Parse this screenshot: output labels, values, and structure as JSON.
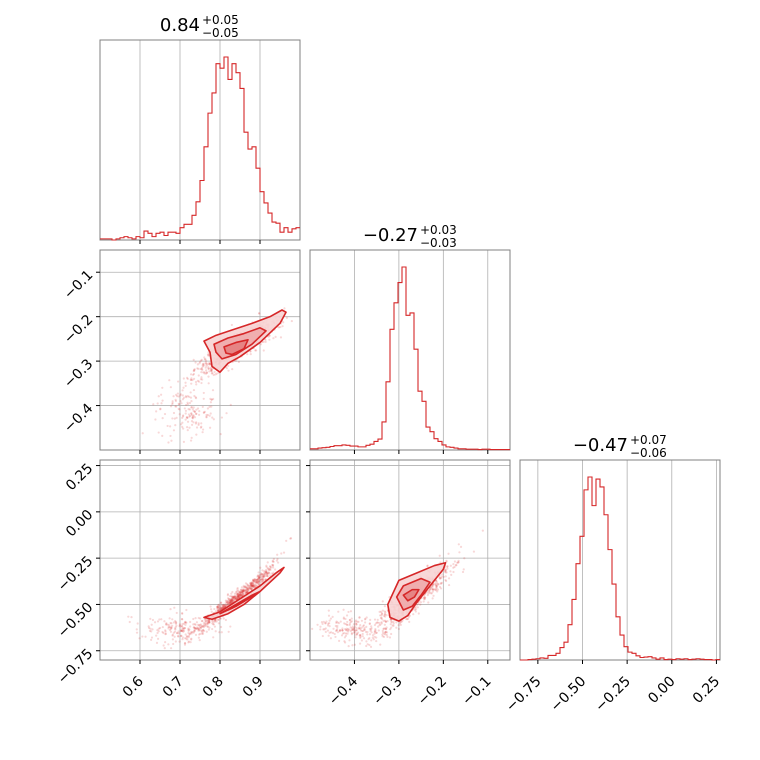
{
  "chart_data": [
    {
      "type": "histogram",
      "panel": "hist-x",
      "title": {
        "value": "0.84",
        "plus": "+0.05",
        "minus": "−0.05"
      },
      "xlim": [
        0.5,
        1.0
      ],
      "bins_start": 0.5,
      "bin_width": 0.01,
      "counts": [
        1,
        1,
        1,
        0,
        1,
        2,
        3,
        2,
        1,
        3,
        2,
        8,
        6,
        3,
        6,
        7,
        4,
        7,
        7,
        6,
        11,
        14,
        14,
        22,
        34,
        53,
        83,
        113,
        131,
        157,
        153,
        163,
        143,
        157,
        149,
        135,
        96,
        81,
        83,
        64,
        43,
        33,
        24,
        16,
        15,
        7,
        11,
        7,
        10,
        11
      ],
      "color": "#d62728"
    },
    {
      "type": "scatter-contour",
      "panel": "xy",
      "xlim": [
        0.5,
        1.0
      ],
      "ylim": [
        -0.5,
        -0.05
      ],
      "yticks": [
        -0.1,
        -0.2,
        -0.3,
        -0.4
      ],
      "ytick_labels": [
        "−0.1",
        "−0.2",
        "−0.3",
        "−0.4"
      ],
      "contours": [
        [
          [
            0.76,
            -0.255
          ],
          [
            0.79,
            -0.242
          ],
          [
            0.83,
            -0.23
          ],
          [
            0.88,
            -0.215
          ],
          [
            0.925,
            -0.2
          ],
          [
            0.955,
            -0.185
          ],
          [
            0.965,
            -0.19
          ],
          [
            0.95,
            -0.215
          ],
          [
            0.9,
            -0.258
          ],
          [
            0.85,
            -0.29
          ],
          [
            0.82,
            -0.305
          ],
          [
            0.8,
            -0.325
          ],
          [
            0.78,
            -0.312
          ],
          [
            0.775,
            -0.28
          ]
        ],
        [
          [
            0.785,
            -0.262
          ],
          [
            0.82,
            -0.248
          ],
          [
            0.86,
            -0.238
          ],
          [
            0.9,
            -0.225
          ],
          [
            0.915,
            -0.232
          ],
          [
            0.88,
            -0.262
          ],
          [
            0.84,
            -0.285
          ],
          [
            0.805,
            -0.295
          ],
          [
            0.79,
            -0.28
          ]
        ],
        [
          [
            0.81,
            -0.268
          ],
          [
            0.84,
            -0.258
          ],
          [
            0.87,
            -0.252
          ],
          [
            0.86,
            -0.272
          ],
          [
            0.83,
            -0.285
          ],
          [
            0.815,
            -0.282
          ]
        ]
      ],
      "color": "#d62728"
    },
    {
      "type": "histogram",
      "panel": "hist-y",
      "title": {
        "value": "−0.27",
        "plus": "+0.03",
        "minus": "−0.03"
      },
      "xlim": [
        -0.5,
        -0.05
      ],
      "xticks": [
        -0.4,
        -0.3,
        -0.2,
        -0.1
      ],
      "bins_start": -0.5,
      "bin_width": 0.009,
      "counts": [
        3,
        3,
        5,
        6,
        7,
        9,
        11,
        11,
        13,
        12,
        10,
        10,
        8,
        8,
        12,
        15,
        22,
        28,
        72,
        175,
        310,
        378,
        430,
        470,
        346,
        352,
        259,
        151,
        125,
        59,
        47,
        29,
        22,
        13,
        8,
        7,
        5,
        3,
        3,
        2,
        2,
        2,
        1,
        2,
        2,
        1,
        1,
        1,
        1,
        1
      ],
      "color": "#d62728"
    },
    {
      "type": "scatter-contour",
      "panel": "xz",
      "xlim": [
        0.5,
        1.0
      ],
      "ylim": [
        -0.8,
        0.28
      ],
      "yticks": [
        0.25,
        0.0,
        -0.25,
        -0.5,
        -0.75
      ],
      "ytick_labels": [
        "0.25",
        "0.00",
        "−0.25",
        "−0.50",
        "−0.75"
      ],
      "xticks": [
        0.6,
        0.7,
        0.8,
        0.9
      ],
      "xtick_labels": [
        "0.6",
        "0.7",
        "0.8",
        "0.9"
      ],
      "contours": [
        [
          [
            0.76,
            -0.57
          ],
          [
            0.8,
            -0.54
          ],
          [
            0.85,
            -0.47
          ],
          [
            0.9,
            -0.4
          ],
          [
            0.94,
            -0.33
          ],
          [
            0.96,
            -0.3
          ],
          [
            0.95,
            -0.33
          ],
          [
            0.9,
            -0.43
          ],
          [
            0.86,
            -0.5
          ],
          [
            0.82,
            -0.55
          ],
          [
            0.78,
            -0.58
          ]
        ],
        [
          [
            0.8,
            -0.55
          ],
          [
            0.84,
            -0.5
          ],
          [
            0.88,
            -0.45
          ],
          [
            0.9,
            -0.43
          ],
          [
            0.87,
            -0.47
          ],
          [
            0.83,
            -0.52
          ]
        ],
        [
          [
            0.82,
            -0.53
          ],
          [
            0.85,
            -0.49
          ],
          [
            0.87,
            -0.47
          ],
          [
            0.84,
            -0.51
          ]
        ]
      ],
      "color": "#d62728"
    },
    {
      "type": "scatter-contour",
      "panel": "yz",
      "xlim": [
        -0.5,
        -0.05
      ],
      "ylim": [
        -0.8,
        0.28
      ],
      "xticks": [
        -0.4,
        -0.3,
        -0.2,
        -0.1
      ],
      "xtick_labels": [
        "−0.4",
        "−0.3",
        "−0.2",
        "−0.1"
      ],
      "contours": [
        [
          [
            -0.325,
            -0.5
          ],
          [
            -0.3,
            -0.37
          ],
          [
            -0.26,
            -0.33
          ],
          [
            -0.22,
            -0.29
          ],
          [
            -0.195,
            -0.275
          ],
          [
            -0.2,
            -0.31
          ],
          [
            -0.23,
            -0.4
          ],
          [
            -0.26,
            -0.49
          ],
          [
            -0.28,
            -0.56
          ],
          [
            -0.3,
            -0.59
          ],
          [
            -0.32,
            -0.57
          ]
        ],
        [
          [
            -0.305,
            -0.46
          ],
          [
            -0.29,
            -0.4
          ],
          [
            -0.25,
            -0.36
          ],
          [
            -0.23,
            -0.38
          ],
          [
            -0.25,
            -0.45
          ],
          [
            -0.27,
            -0.51
          ],
          [
            -0.29,
            -0.53
          ]
        ],
        [
          [
            -0.29,
            -0.45
          ],
          [
            -0.27,
            -0.42
          ],
          [
            -0.255,
            -0.42
          ],
          [
            -0.265,
            -0.46
          ],
          [
            -0.28,
            -0.48
          ]
        ]
      ],
      "color": "#d62728"
    },
    {
      "type": "histogram",
      "panel": "hist-z",
      "title": {
        "value": "−0.47",
        "plus": "+0.07",
        "minus": "−0.06"
      },
      "xlim": [
        -0.85,
        0.27
      ],
      "xticks": [
        -0.75,
        -0.5,
        -0.25,
        0.0,
        0.25
      ],
      "xtick_labels": [
        "−0.75",
        "−0.50",
        "−0.25",
        "0.00",
        "0.25"
      ],
      "bins_start": -0.85,
      "bin_width": 0.0224,
      "counts": [
        0,
        0,
        1,
        2,
        3,
        5,
        4,
        11,
        11,
        16,
        30,
        43,
        85,
        146,
        232,
        298,
        410,
        441,
        372,
        436,
        417,
        350,
        266,
        183,
        104,
        60,
        32,
        19,
        16,
        10,
        6,
        7,
        8,
        5,
        2,
        5,
        1,
        2,
        1,
        3,
        2,
        3,
        1,
        2,
        3,
        2,
        1,
        1,
        0,
        1
      ],
      "color": "#d62728"
    }
  ]
}
